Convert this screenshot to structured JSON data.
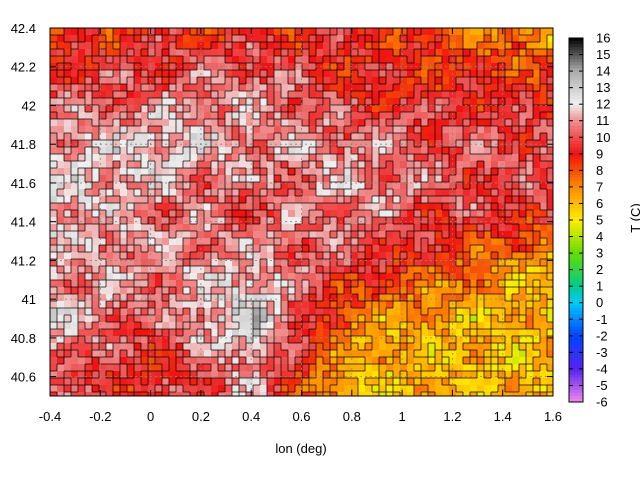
{
  "chart_data": {
    "type": "heatmap",
    "title": "",
    "xlabel": "lon (deg)",
    "ylabel": "",
    "xlim": [
      -0.4,
      1.6
    ],
    "ylim": [
      40.5,
      42.4
    ],
    "x_ticks": [
      -0.4,
      -0.2,
      0,
      0.2,
      0.4,
      0.6,
      0.8,
      1,
      1.2,
      1.4,
      1.6
    ],
    "x_tick_labels": [
      "-0.4",
      "-0.2",
      "0",
      "0.2",
      "0.4",
      "0.6",
      "0.8",
      "1",
      "1.2",
      "1.4",
      "1.6"
    ],
    "y_ticks": [
      40.6,
      40.8,
      41,
      41.2,
      41.4,
      41.6,
      41.8,
      42,
      42.2,
      42.4
    ],
    "y_tick_labels": [
      "40.6",
      "40.8",
      "41",
      "41.2",
      "41.4",
      "41.6",
      "41.8",
      "42",
      "42.2",
      "42.4"
    ],
    "grid": true,
    "grid_style": "dashed",
    "colorbar": {
      "label": "T (C)",
      "range": [
        -6,
        16
      ],
      "ticks": [
        16,
        15,
        14,
        13,
        12,
        11,
        10,
        9,
        8,
        7,
        6,
        5,
        4,
        3,
        2,
        1,
        0,
        -1,
        -2,
        -3,
        -4,
        -5,
        -6
      ],
      "tick_labels": [
        "16",
        "15",
        "14",
        "13",
        "12",
        "11",
        "10",
        "9",
        "8",
        "7",
        "6",
        "5",
        "4",
        "3",
        "2",
        "1",
        "0",
        "-1",
        "-2",
        "-3",
        "-4",
        "-5",
        "-6"
      ],
      "stops": [
        {
          "value": 16,
          "color": "#000000"
        },
        {
          "value": 14,
          "color": "#aaaaaa"
        },
        {
          "value": 12,
          "color": "#f0f0f0"
        },
        {
          "value": 11,
          "color": "#f09090"
        },
        {
          "value": 9,
          "color": "#ee1111"
        },
        {
          "value": 7,
          "color": "#ff8800"
        },
        {
          "value": 5,
          "color": "#ffee00"
        },
        {
          "value": 3,
          "color": "#66dd00"
        },
        {
          "value": 1,
          "color": "#00cc88"
        },
        {
          "value": 0,
          "color": "#00ccff"
        },
        {
          "value": -2,
          "color": "#0044ff"
        },
        {
          "value": -4,
          "color": "#5522ee"
        },
        {
          "value": -6,
          "color": "#ee88ee"
        }
      ]
    },
    "temperature_field_C": {
      "lon": [
        -0.4,
        0.0,
        0.4,
        0.8,
        1.2,
        1.6
      ],
      "lat": [
        42.4,
        42.1,
        41.8,
        41.5,
        41.2,
        40.9,
        40.6
      ],
      "values": [
        [
          8,
          9,
          9,
          9,
          8,
          6
        ],
        [
          10,
          10,
          11,
          9,
          9,
          9
        ],
        [
          11,
          12,
          11,
          11,
          10,
          10
        ],
        [
          12,
          11,
          10,
          11,
          10,
          10
        ],
        [
          11,
          11,
          11,
          10,
          8,
          6
        ],
        [
          12,
          10,
          13,
          7,
          6,
          6
        ],
        [
          10,
          9,
          11,
          6,
          6,
          6
        ]
      ]
    }
  }
}
